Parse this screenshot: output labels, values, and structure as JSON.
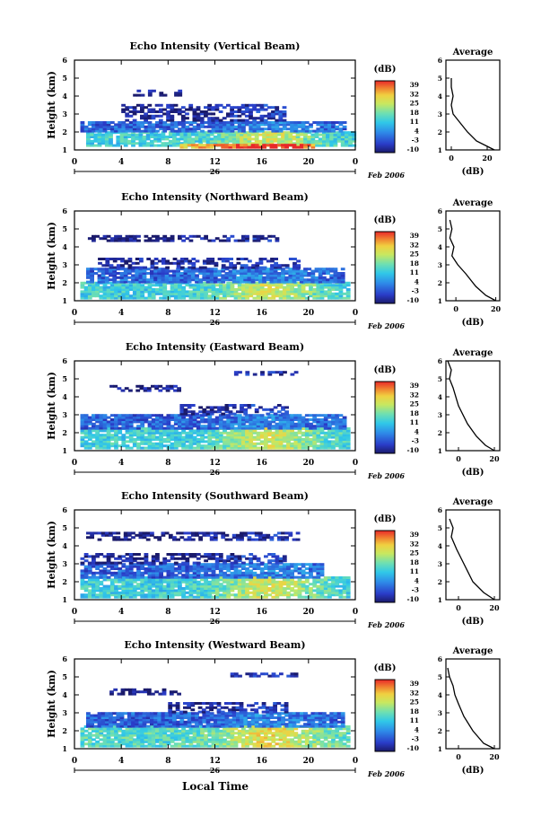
{
  "figure": {
    "global_xlabel": "Local Time",
    "date_label": "26",
    "month_label": "Feb 2006",
    "colorbar_unit": "(dB)",
    "colorbar_ticks": [
      "39",
      "32",
      "25",
      "18",
      "11",
      "4",
      "-3",
      "-10"
    ],
    "avg_title": "Average",
    "avg_xlabel": "(dB)",
    "ylabel": "Height (km)"
  },
  "chart_data": [
    {
      "type": "heatmap",
      "title": "Echo Intensity (Vertical Beam)",
      "ylabel": "Height (km)",
      "x_ticks": [
        "0",
        "4",
        "8",
        "12",
        "16",
        "20",
        "0"
      ],
      "xlim": [
        0,
        24
      ],
      "ylim": [
        1,
        6
      ],
      "y_ticks": [
        "1",
        "2",
        "3",
        "4",
        "5",
        "6"
      ],
      "colorbar": {
        "label": "(dB)",
        "range": [
          -10,
          39
        ],
        "ticks": [
          39,
          32,
          25,
          18,
          11,
          4,
          -3,
          -10
        ]
      },
      "layers": [
        {
          "y0": 1.2,
          "y1": 2.0,
          "x0": 1,
          "x1": 24,
          "level": 0.45
        },
        {
          "y0": 1.1,
          "y1": 1.25,
          "x0": 9,
          "x1": 20.5,
          "level": 0.8
        },
        {
          "y0": 2.0,
          "y1": 2.6,
          "x0": 0.5,
          "x1": 23,
          "level": 0.2
        },
        {
          "y0": 2.6,
          "y1": 3.5,
          "x0": 4,
          "x1": 18,
          "level": 0.05
        },
        {
          "y0": 4.0,
          "y1": 4.3,
          "x0": 5,
          "x1": 9,
          "level": 0.02
        }
      ],
      "average": {
        "title": "Average",
        "xlabel": "(dB)",
        "x_ticks": [
          "0",
          "20"
        ],
        "xlim": [
          -3,
          27
        ],
        "profile": [
          [
            24,
            1.0
          ],
          [
            20,
            1.2
          ],
          [
            14,
            1.5
          ],
          [
            9,
            2.0
          ],
          [
            5,
            2.5
          ],
          [
            1,
            3.0
          ],
          [
            0,
            3.5
          ],
          [
            1,
            4.0
          ],
          [
            0,
            4.5
          ],
          [
            0,
            5.0
          ]
        ]
      }
    },
    {
      "type": "heatmap",
      "title": "Echo Intensity (Northward Beam)",
      "ylabel": "Height (km)",
      "x_ticks": [
        "0",
        "4",
        "8",
        "12",
        "16",
        "20",
        "0"
      ],
      "xlim": [
        0,
        24
      ],
      "ylim": [
        1,
        6
      ],
      "y_ticks": [
        "1",
        "2",
        "3",
        "4",
        "5",
        "6"
      ],
      "colorbar": {
        "label": "(dB)",
        "range": [
          -10,
          39
        ],
        "ticks": [
          39,
          32,
          25,
          18,
          11,
          4,
          -3,
          -10
        ]
      },
      "layers": [
        {
          "y0": 1.1,
          "y1": 2.0,
          "x0": 0.5,
          "x1": 23.5,
          "level": 0.45
        },
        {
          "y0": 2.0,
          "y1": 2.8,
          "x0": 1,
          "x1": 23,
          "level": 0.2
        },
        {
          "y0": 2.8,
          "y1": 3.3,
          "x0": 2,
          "x1": 19,
          "level": 0.05
        },
        {
          "y0": 4.3,
          "y1": 4.6,
          "x0": 0.5,
          "x1": 17.5,
          "level": 0.02
        }
      ],
      "average": {
        "title": "Average",
        "xlabel": "(dB)",
        "x_ticks": [
          "0",
          "20"
        ],
        "xlim": [
          -5,
          22
        ],
        "profile": [
          [
            20,
            1.0
          ],
          [
            15,
            1.3
          ],
          [
            10,
            1.8
          ],
          [
            5,
            2.5
          ],
          [
            1,
            3.0
          ],
          [
            -2,
            3.5
          ],
          [
            -1,
            4.0
          ],
          [
            -3,
            4.5
          ],
          [
            -2,
            5.0
          ],
          [
            -3,
            5.5
          ]
        ]
      }
    },
    {
      "type": "heatmap",
      "title": "Echo Intensity (Eastward Beam)",
      "ylabel": "Height (km)",
      "x_ticks": [
        "0",
        "4",
        "8",
        "12",
        "16",
        "20",
        "0"
      ],
      "xlim": [
        0,
        24
      ],
      "ylim": [
        1,
        6
      ],
      "y_ticks": [
        "1",
        "2",
        "3",
        "4",
        "5",
        "6"
      ],
      "colorbar": {
        "label": "(dB)",
        "range": [
          -10,
          39
        ],
        "ticks": [
          39,
          32,
          25,
          18,
          11,
          4,
          -3,
          -10
        ]
      },
      "layers": [
        {
          "y0": 1.1,
          "y1": 2.2,
          "x0": 0.5,
          "x1": 23.5,
          "level": 0.45
        },
        {
          "y0": 2.2,
          "y1": 3.0,
          "x0": 0.5,
          "x1": 23,
          "level": 0.2
        },
        {
          "y0": 3.0,
          "y1": 3.5,
          "x0": 9,
          "x1": 18,
          "level": 0.05
        },
        {
          "y0": 4.3,
          "y1": 4.6,
          "x0": 3,
          "x1": 9,
          "level": 0.02
        },
        {
          "y0": 5.2,
          "y1": 5.4,
          "x0": 13,
          "x1": 19,
          "level": 0.02
        }
      ],
      "average": {
        "title": "Average",
        "xlabel": "(dB)",
        "x_ticks": [
          "0",
          "20"
        ],
        "xlim": [
          -7,
          23
        ],
        "profile": [
          [
            20,
            1.0
          ],
          [
            15,
            1.3
          ],
          [
            10,
            1.8
          ],
          [
            5,
            2.5
          ],
          [
            0,
            3.5
          ],
          [
            -3,
            4.5
          ],
          [
            -5,
            5.0
          ],
          [
            -4,
            5.5
          ],
          [
            -6,
            6.0
          ]
        ]
      }
    },
    {
      "type": "heatmap",
      "title": "Echo Intensity (Southward Beam)",
      "ylabel": "Height (km)",
      "x_ticks": [
        "0",
        "4",
        "8",
        "12",
        "16",
        "20",
        "0"
      ],
      "xlim": [
        0,
        24
      ],
      "ylim": [
        1,
        6
      ],
      "y_ticks": [
        "1",
        "2",
        "3",
        "4",
        "5",
        "6"
      ],
      "colorbar": {
        "label": "(dB)",
        "range": [
          -10,
          39
        ],
        "ticks": [
          39,
          32,
          25,
          18,
          11,
          4,
          -3,
          -10
        ]
      },
      "layers": [
        {
          "y0": 1.1,
          "y1": 2.2,
          "x0": 0.5,
          "x1": 23.5,
          "level": 0.45
        },
        {
          "y0": 2.2,
          "y1": 3.0,
          "x0": 0.5,
          "x1": 21,
          "level": 0.2
        },
        {
          "y0": 3.0,
          "y1": 3.6,
          "x0": 0.5,
          "x1": 18,
          "level": 0.05
        },
        {
          "y0": 4.3,
          "y1": 4.7,
          "x0": 1,
          "x1": 19,
          "level": 0.02
        }
      ],
      "average": {
        "title": "Average",
        "xlabel": "(dB)",
        "x_ticks": [
          "0",
          "20"
        ],
        "xlim": [
          -7,
          23
        ],
        "profile": [
          [
            20,
            1.0
          ],
          [
            14,
            1.4
          ],
          [
            8,
            2.0
          ],
          [
            3,
            3.0
          ],
          [
            -1,
            3.8
          ],
          [
            -4,
            4.5
          ],
          [
            -3,
            5.0
          ],
          [
            -5,
            5.5
          ]
        ]
      }
    },
    {
      "type": "heatmap",
      "title": "Echo Intensity (Westward Beam)",
      "ylabel": "Height (km)",
      "x_ticks": [
        "0",
        "4",
        "8",
        "12",
        "16",
        "20",
        "0"
      ],
      "xlim": [
        0,
        24
      ],
      "ylim": [
        1,
        6
      ],
      "y_ticks": [
        "1",
        "2",
        "3",
        "4",
        "5",
        "6"
      ],
      "colorbar": {
        "label": "(dB)",
        "range": [
          -10,
          39
        ],
        "ticks": [
          39,
          32,
          25,
          18,
          11,
          4,
          -3,
          -10
        ]
      },
      "layers": [
        {
          "y0": 1.1,
          "y1": 2.2,
          "x0": 0.5,
          "x1": 23.5,
          "level": 0.5
        },
        {
          "y0": 2.2,
          "y1": 3.0,
          "x0": 1,
          "x1": 23,
          "level": 0.2
        },
        {
          "y0": 3.0,
          "y1": 3.5,
          "x0": 8,
          "x1": 18,
          "level": 0.05
        },
        {
          "y0": 4.0,
          "y1": 4.3,
          "x0": 3,
          "x1": 9,
          "level": 0.02
        },
        {
          "y0": 5.0,
          "y1": 5.2,
          "x0": 13,
          "x1": 19,
          "level": 0.02
        }
      ],
      "average": {
        "title": "Average",
        "xlabel": "(dB)",
        "x_ticks": [
          "0",
          "20"
        ],
        "xlim": [
          -7,
          23
        ],
        "profile": [
          [
            20,
            1.0
          ],
          [
            14,
            1.3
          ],
          [
            8,
            2.0
          ],
          [
            3,
            2.8
          ],
          [
            0,
            3.5
          ],
          [
            -2,
            4.0
          ],
          [
            -3,
            4.5
          ],
          [
            -5,
            5.0
          ],
          [
            -6,
            5.5
          ]
        ]
      }
    }
  ]
}
